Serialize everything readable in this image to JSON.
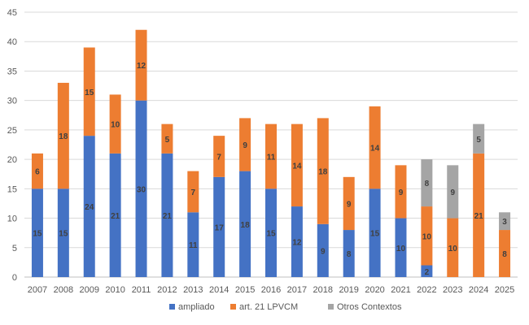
{
  "chart_data": {
    "type": "bar",
    "stacked": true,
    "title": "",
    "xlabel": "",
    "ylabel": "",
    "ylim": [
      0,
      45
    ],
    "yticks": [
      0,
      5,
      10,
      15,
      20,
      25,
      30,
      35,
      40,
      45
    ],
    "grid": true,
    "legend_position": "bottom",
    "categories": [
      "2007",
      "2008",
      "2009",
      "2010",
      "2011",
      "2012",
      "2013",
      "2014",
      "2015",
      "2016",
      "2017",
      "2018",
      "2019",
      "2020",
      "2021",
      "2022",
      "2023",
      "2024",
      "2025"
    ],
    "series": [
      {
        "name": "ampliado",
        "color": "#4472C4",
        "values": [
          15,
          15,
          24,
          21,
          30,
          21,
          11,
          17,
          18,
          15,
          12,
          9,
          8,
          15,
          10,
          2,
          0,
          0,
          0
        ]
      },
      {
        "name": "art. 21 LPVCM",
        "color": "#ED7D31",
        "values": [
          6,
          18,
          15,
          10,
          12,
          5,
          7,
          7,
          9,
          11,
          14,
          18,
          9,
          14,
          9,
          10,
          10,
          21,
          8
        ]
      },
      {
        "name": "Otros Contextos",
        "color": "#A5A5A5",
        "values": [
          0,
          0,
          0,
          0,
          0,
          0,
          0,
          0,
          0,
          0,
          0,
          0,
          0,
          0,
          0,
          8,
          9,
          5,
          3
        ]
      }
    ]
  }
}
